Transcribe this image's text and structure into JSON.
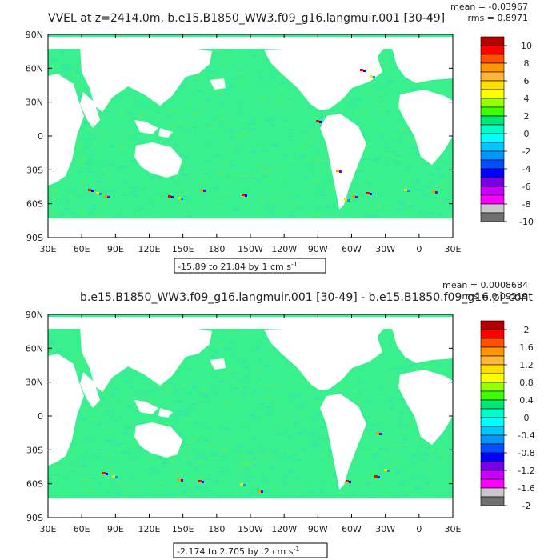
{
  "chart_data": [
    {
      "type": "heatmap",
      "title": "VVEL at z=2414.0m, b.e15.B1850_WW3.f09_g16.langmuir.001 [30-49]",
      "stats": {
        "mean": "mean = -0.03967",
        "rms": "rms = 0.8971"
      },
      "range_text": "-15.89 to 21.84 by 1 cm s",
      "range_unit_exp": "-1",
      "x_ticks": [
        "30E",
        "60E",
        "90E",
        "120E",
        "150E",
        "180",
        "150W",
        "120W",
        "90W",
        "60W",
        "30W",
        "0",
        "30E"
      ],
      "y_ticks": [
        "90N",
        "60N",
        "30N",
        "0",
        "30S",
        "60S",
        "90S"
      ],
      "colorbar_labels": [
        "10",
        "8",
        "6",
        "4",
        "2",
        "0",
        "-2",
        "-4",
        "-6",
        "-8",
        "-10"
      ]
    },
    {
      "type": "heatmap",
      "title": "b.e15.B1850_WW3.f09_g16.langmuir.001 [30-49] - b.e15.B1850.f09_g16.pi_cont",
      "stats": {
        "mean": "mean = 0.0008684",
        "rms": "rms = 0.09219"
      },
      "range_text": "-2.174 to 2.705 by .2 cm s",
      "range_unit_exp": "-1",
      "x_ticks": [
        "30E",
        "60E",
        "90E",
        "120E",
        "150E",
        "180",
        "150W",
        "120W",
        "90W",
        "60W",
        "30W",
        "0",
        "30E"
      ],
      "y_ticks": [
        "90N",
        "60N",
        "30N",
        "0",
        "30S",
        "60S",
        "90S"
      ],
      "colorbar_labels": [
        "2",
        "1.6",
        "1.2",
        "0.8",
        "0.4",
        "0",
        "-0.4",
        "-0.8",
        "-1.2",
        "-1.6",
        "-2"
      ]
    }
  ],
  "colors": {
    "scale": [
      "#b40000",
      "#ff0000",
      "#ff5000",
      "#ff9600",
      "#ffb43c",
      "#ffe100",
      "#ffff00",
      "#96ff00",
      "#3cff00",
      "#00e678",
      "#00ffc8",
      "#00ffff",
      "#00c8ff",
      "#0096ff",
      "#0050ff",
      "#0000ff",
      "#7800e6",
      "#c800ff",
      "#ff00ff",
      "#c8c8c8",
      "#707070"
    ],
    "land": "#ffffff",
    "ocean_base": "#39f08e",
    "ocean_alt": "#2fe6ae",
    "frame": "#000000"
  }
}
